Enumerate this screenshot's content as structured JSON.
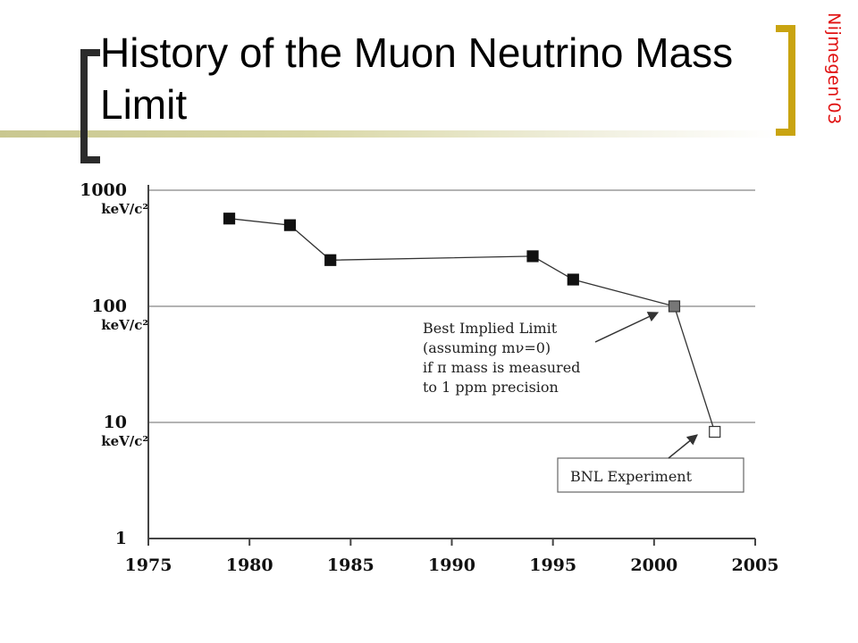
{
  "slide": {
    "title": "History of the Muon Neutrino Mass Limit",
    "side_label": "Nijmegen'03"
  },
  "colors": {
    "title_bar": "#d9d7a6",
    "bracket_left": "#2b2b2b",
    "bracket_right": "#c9a411",
    "side_label": "#e01010",
    "gridline": "#9a9a9a",
    "series": "#111111",
    "implied_marker": "#777777"
  },
  "chart_data": {
    "type": "scatter",
    "scale_y": "log",
    "xlim": [
      1975,
      2005
    ],
    "ylim": [
      1,
      1000
    ],
    "x_ticks": [
      "1975",
      "1980",
      "1985",
      "1990",
      "1995",
      "2000",
      "2005"
    ],
    "y_ticks": [
      {
        "value": 1,
        "label": "1",
        "unit": ""
      },
      {
        "value": 10,
        "label": "10",
        "unit": "keV/c²"
      },
      {
        "value": 100,
        "label": "100",
        "unit": "keV/c²"
      },
      {
        "value": 1000,
        "label": "1000",
        "unit": "keV/c²"
      }
    ],
    "grid_y": true,
    "series": [
      {
        "points": [
          {
            "x": 1979,
            "y": 570,
            "marker": "filled"
          },
          {
            "x": 1982,
            "y": 500,
            "marker": "filled"
          },
          {
            "x": 1984,
            "y": 250,
            "marker": "filled"
          },
          {
            "x": 1994,
            "y": 270,
            "marker": "filled"
          },
          {
            "x": 1996,
            "y": 170,
            "marker": "filled"
          },
          {
            "x": 2001,
            "y": 100,
            "marker": "gray"
          },
          {
            "x": 2003,
            "y": 8.3,
            "marker": "open"
          }
        ]
      }
    ],
    "annotations": [
      {
        "lines": [
          "Best Implied Limit",
          "(assuming mν=0)",
          "if π mass is measured",
          "to 1 ppm precision"
        ],
        "boxed": false,
        "points_to": {
          "x": 2001,
          "y": 100
        }
      },
      {
        "lines": [
          "BNL Experiment"
        ],
        "boxed": true,
        "points_to": {
          "x": 2003,
          "y": 8.3
        }
      }
    ]
  }
}
